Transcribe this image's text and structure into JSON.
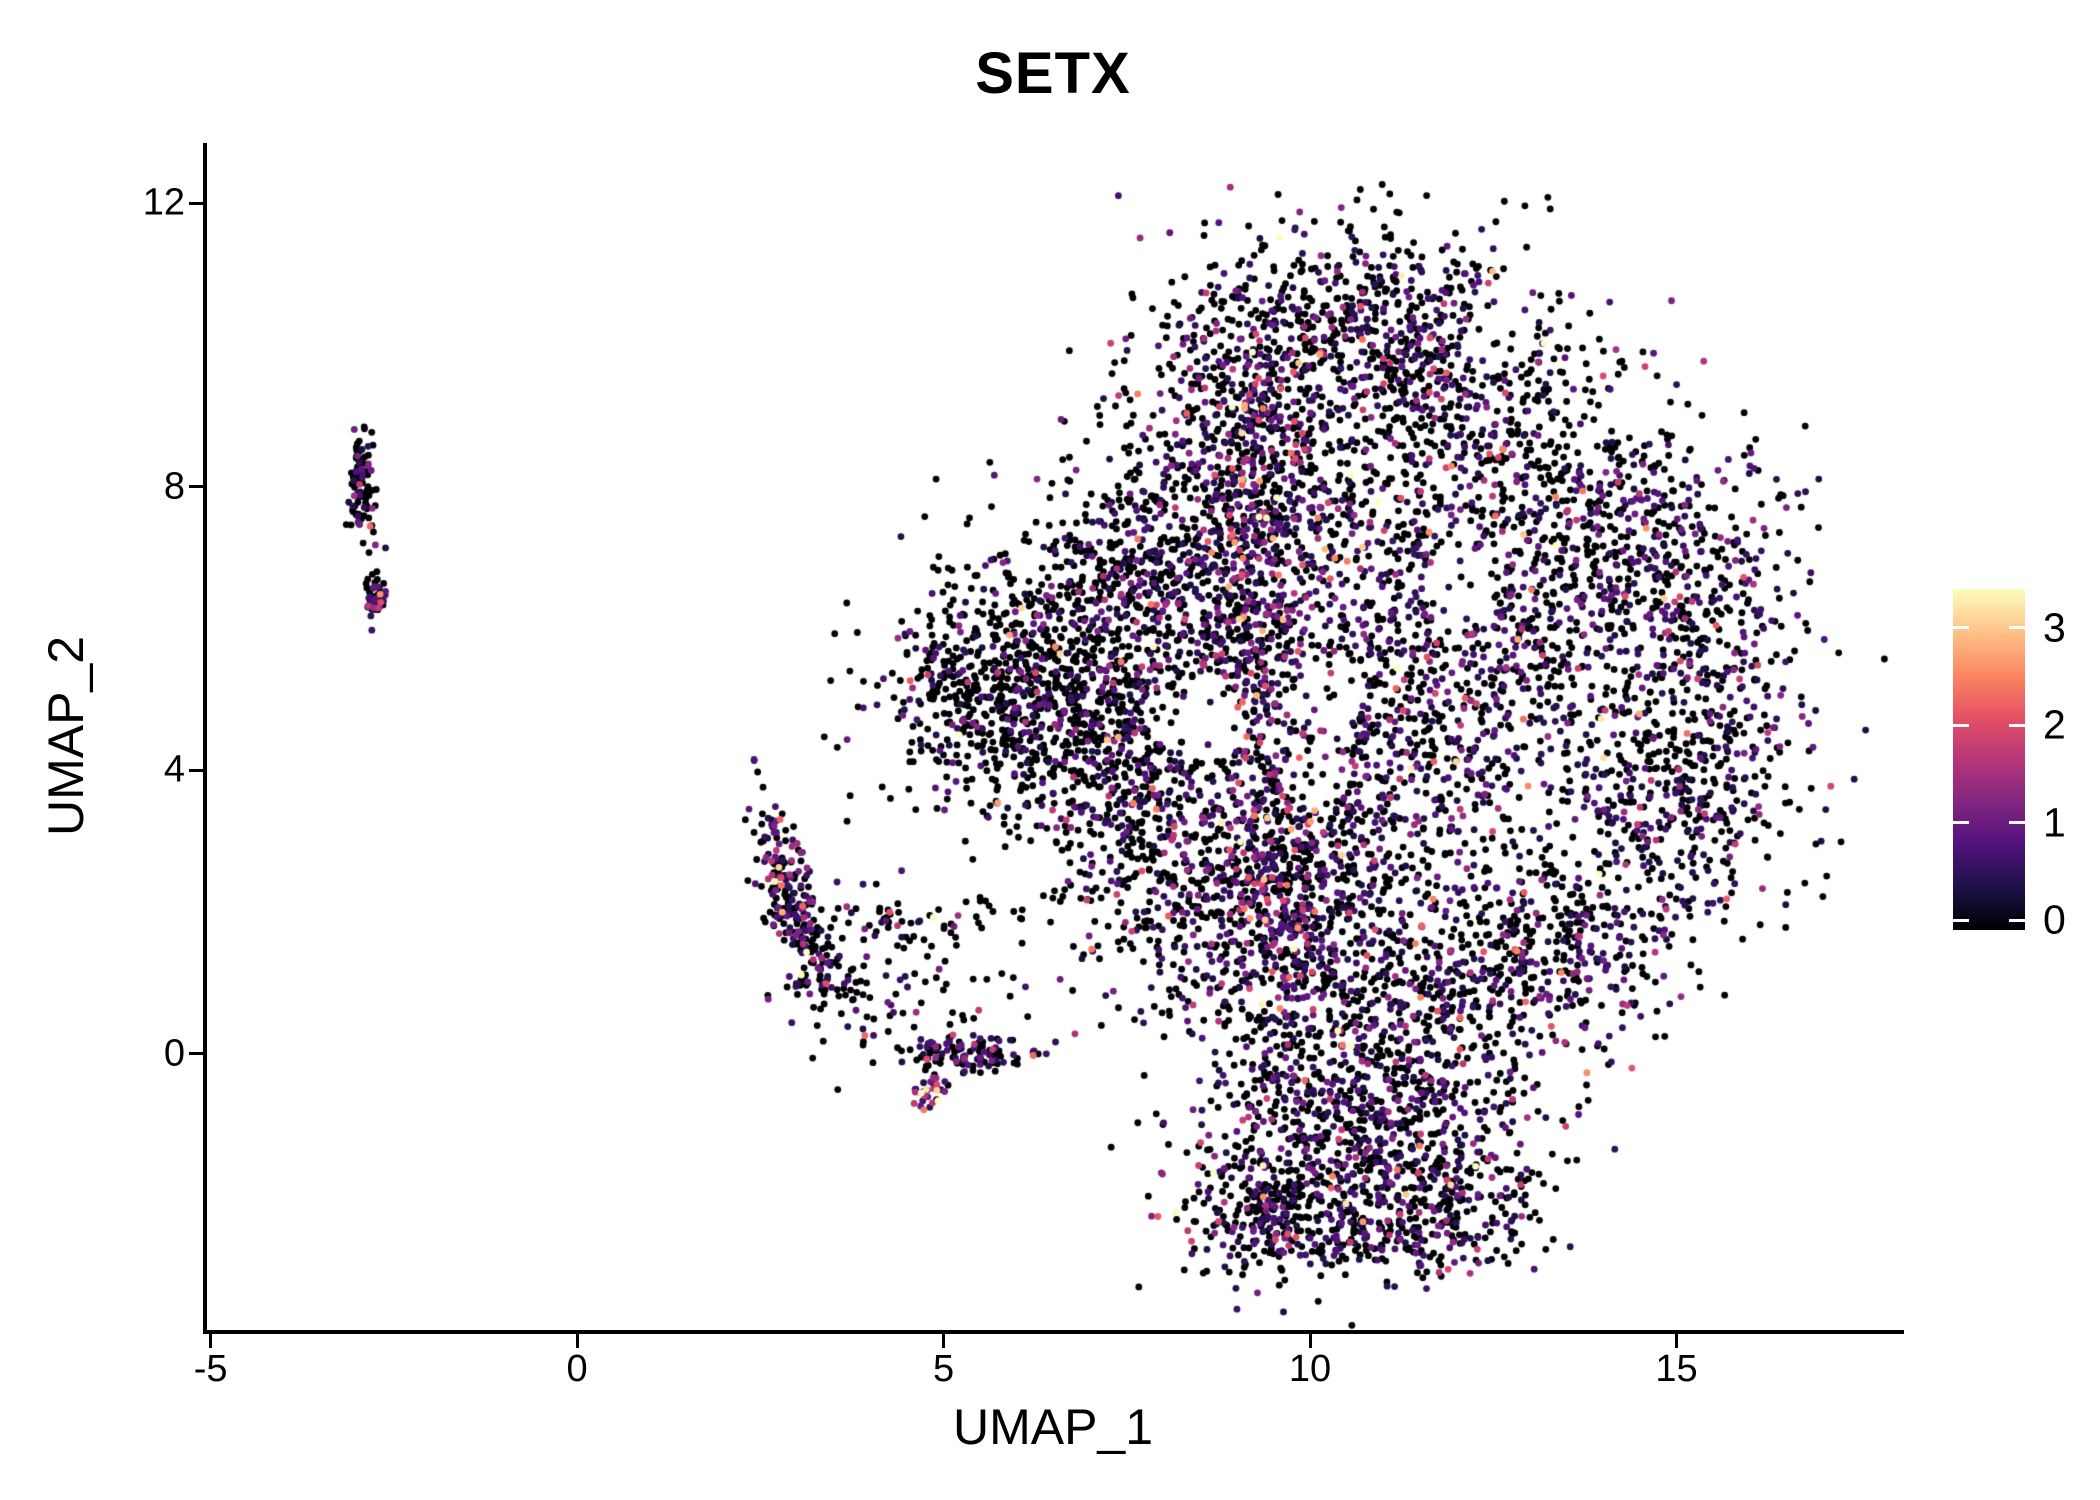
{
  "page": {
    "background": "#ffffff"
  },
  "chart_data": {
    "type": "scatter",
    "title": "SETX",
    "xlabel": "UMAP_1",
    "ylabel": "UMAP_2",
    "x_ticks": [
      -5,
      0,
      5,
      10,
      15
    ],
    "y_ticks": [
      0,
      4,
      8,
      12
    ],
    "xlim": [
      -5.05,
      18.05
    ],
    "ylim": [
      -3.9,
      12.85
    ],
    "grid": false,
    "axis_color": "#000000",
    "point_radius_px": 3.4,
    "seed": 42,
    "legend": {
      "position": "right",
      "kind": "colorbar",
      "ticks": [
        0,
        1,
        2,
        3
      ],
      "bar_range": [
        -0.1,
        3.4
      ],
      "point_vmax": 3.3,
      "colormap": "magma",
      "colors": [
        "#000004",
        "#1d1147",
        "#51127c",
        "#822681",
        "#b63679",
        "#e65164",
        "#fb8861",
        "#fec287",
        "#fcfdbf"
      ]
    },
    "clusters": [
      {
        "name": "left-strip-upper",
        "cx": -2.95,
        "cy": 8.05,
        "sx": 0.09,
        "sy": 0.4,
        "slope": -0.6,
        "n": 95,
        "p0": 0.6,
        "em": 0.6
      },
      {
        "name": "left-strip-lower",
        "cx": -2.76,
        "cy": 6.45,
        "sx": 0.08,
        "sy": 0.16,
        "n": 48,
        "p0": 0.5,
        "em": 0.7
      },
      {
        "name": "small-cluster-core",
        "cx": 2.9,
        "cy": 2.2,
        "sx": 0.26,
        "sy": 0.5,
        "slope": -2.0,
        "n": 240,
        "p0": 0.55,
        "em": 0.6
      },
      {
        "name": "small-cluster-arm",
        "cx": 4.5,
        "cy": 1.95,
        "sx": 0.7,
        "sy": 0.22,
        "n": 60,
        "p0": 0.7,
        "em": 0.5
      },
      {
        "name": "small-cluster-tail",
        "cx": 3.6,
        "cy": 0.75,
        "sx": 0.45,
        "sy": 0.4,
        "n": 55,
        "p0": 0.65,
        "em": 0.5
      },
      {
        "name": "zero-strip",
        "cx": 5.4,
        "cy": 0.0,
        "sx": 0.5,
        "sy": 0.13,
        "n": 110,
        "p0": 0.6,
        "em": 0.55
      },
      {
        "name": "small-colorful-clump",
        "cx": 4.82,
        "cy": -0.58,
        "sx": 0.11,
        "sy": 0.13,
        "n": 32,
        "p0": 0.25,
        "em": 1.1
      },
      {
        "name": "bridge-sparse",
        "cx": 4.7,
        "cy": 0.95,
        "sx": 0.8,
        "sy": 0.45,
        "n": 45,
        "p0": 0.75,
        "em": 0.5
      },
      {
        "name": "main-left-wedge",
        "cx": 5.9,
        "cy": 5.2,
        "sx": 0.85,
        "sy": 0.8,
        "n": 750,
        "p0": 0.78,
        "em": 0.45
      },
      {
        "name": "main-left-lower",
        "cx": 7.4,
        "cy": 3.9,
        "sx": 0.8,
        "sy": 0.9,
        "n": 430,
        "p0": 0.68,
        "em": 0.5
      },
      {
        "name": "main-left-upper",
        "cx": 7.6,
        "cy": 6.7,
        "sx": 0.8,
        "sy": 0.9,
        "n": 430,
        "p0": 0.66,
        "em": 0.5
      },
      {
        "name": "main-top-left",
        "cx": 9.0,
        "cy": 8.8,
        "sx": 0.95,
        "sy": 1.0,
        "n": 500,
        "p0": 0.62,
        "em": 0.55
      },
      {
        "name": "main-top",
        "cx": 10.4,
        "cy": 10.4,
        "sx": 1.05,
        "sy": 0.7,
        "n": 400,
        "p0": 0.68,
        "em": 0.5
      },
      {
        "name": "main-top-right",
        "cx": 11.9,
        "cy": 9.4,
        "sx": 1.1,
        "sy": 0.9,
        "n": 500,
        "p0": 0.62,
        "em": 0.55
      },
      {
        "name": "main-right-upper",
        "cx": 14.0,
        "cy": 7.7,
        "sx": 1.0,
        "sy": 0.9,
        "n": 430,
        "p0": 0.64,
        "em": 0.5
      },
      {
        "name": "main-right-edge",
        "cx": 15.5,
        "cy": 5.7,
        "sx": 0.7,
        "sy": 1.1,
        "n": 340,
        "p0": 0.66,
        "em": 0.5
      },
      {
        "name": "main-right-lower",
        "cx": 14.8,
        "cy": 3.4,
        "sx": 0.9,
        "sy": 0.9,
        "n": 380,
        "p0": 0.64,
        "em": 0.5
      },
      {
        "name": "main-bottom-right",
        "cx": 13.1,
        "cy": 1.6,
        "sx": 1.0,
        "sy": 0.85,
        "n": 430,
        "p0": 0.62,
        "em": 0.55
      },
      {
        "name": "main-bottom",
        "cx": 11.0,
        "cy": 0.6,
        "sx": 1.1,
        "sy": 0.75,
        "n": 480,
        "p0": 0.6,
        "em": 0.55
      },
      {
        "name": "main-bottom-left",
        "cx": 8.7,
        "cy": 1.9,
        "sx": 0.95,
        "sy": 0.85,
        "n": 430,
        "p0": 0.62,
        "em": 0.5
      },
      {
        "name": "main-mid-left",
        "cx": 8.9,
        "cy": 5.6,
        "sx": 0.9,
        "sy": 1.0,
        "n": 380,
        "p0": 0.58,
        "em": 0.55
      },
      {
        "name": "main-center-upper",
        "cx": 10.7,
        "cy": 7.0,
        "sx": 1.15,
        "sy": 1.1,
        "n": 430,
        "p0": 0.55,
        "em": 0.6
      },
      {
        "name": "main-center-lower",
        "cx": 11.5,
        "cy": 4.3,
        "sx": 1.2,
        "sy": 1.1,
        "n": 430,
        "p0": 0.55,
        "em": 0.6
      },
      {
        "name": "main-center-right",
        "cx": 13.3,
        "cy": 5.9,
        "sx": 1.05,
        "sy": 1.0,
        "n": 360,
        "p0": 0.6,
        "em": 0.55
      },
      {
        "name": "main-mid",
        "cx": 10.0,
        "cy": 2.9,
        "sx": 0.9,
        "sy": 0.8,
        "n": 360,
        "p0": 0.58,
        "em": 0.6
      },
      {
        "name": "expr-band-upper",
        "cx": 9.2,
        "cy": 7.2,
        "sx": 0.38,
        "sy": 1.6,
        "n": 300,
        "p0": 0.35,
        "em": 0.75
      },
      {
        "name": "expr-band-lower",
        "cx": 9.6,
        "cy": 2.3,
        "sx": 0.4,
        "sy": 1.1,
        "n": 220,
        "p0": 0.4,
        "em": 0.7
      },
      {
        "name": "neck",
        "cx": 10.6,
        "cy": -0.6,
        "sx": 1.1,
        "sy": 0.35,
        "n": 200,
        "p0": 0.62,
        "em": 0.5
      },
      {
        "name": "lobe-left",
        "cx": 10.2,
        "cy": -1.5,
        "sx": 0.95,
        "sy": 0.7,
        "n": 380,
        "p0": 0.6,
        "em": 0.55
      },
      {
        "name": "lobe-right",
        "cx": 11.9,
        "cy": -1.8,
        "sx": 0.7,
        "sy": 0.55,
        "n": 260,
        "p0": 0.62,
        "em": 0.5
      },
      {
        "name": "lobe-tip",
        "cx": 9.3,
        "cy": -2.3,
        "sx": 0.5,
        "sy": 0.4,
        "n": 130,
        "p0": 0.6,
        "em": 0.55
      },
      {
        "name": "lobe-rim",
        "cx": 10.8,
        "cy": -2.55,
        "sx": 1.0,
        "sy": 0.3,
        "n": 210,
        "p0": 0.65,
        "em": 0.5
      }
    ],
    "holes": [
      {
        "x": 8.5,
        "y": 4.7,
        "r": 0.6,
        "p": 0.85
      },
      {
        "x": 10.3,
        "y": 5.1,
        "r": 0.5,
        "p": 0.8
      },
      {
        "x": 12.1,
        "y": 6.6,
        "r": 0.55,
        "p": 0.8
      },
      {
        "x": 12.6,
        "y": 10.1,
        "r": 0.5,
        "p": 0.85
      },
      {
        "x": 14.4,
        "y": 9.0,
        "r": 0.45,
        "p": 0.8
      },
      {
        "x": 10.1,
        "y": 3.9,
        "r": 0.45,
        "p": 0.75
      },
      {
        "x": 13.4,
        "y": 3.1,
        "r": 0.45,
        "p": 0.75
      }
    ]
  }
}
